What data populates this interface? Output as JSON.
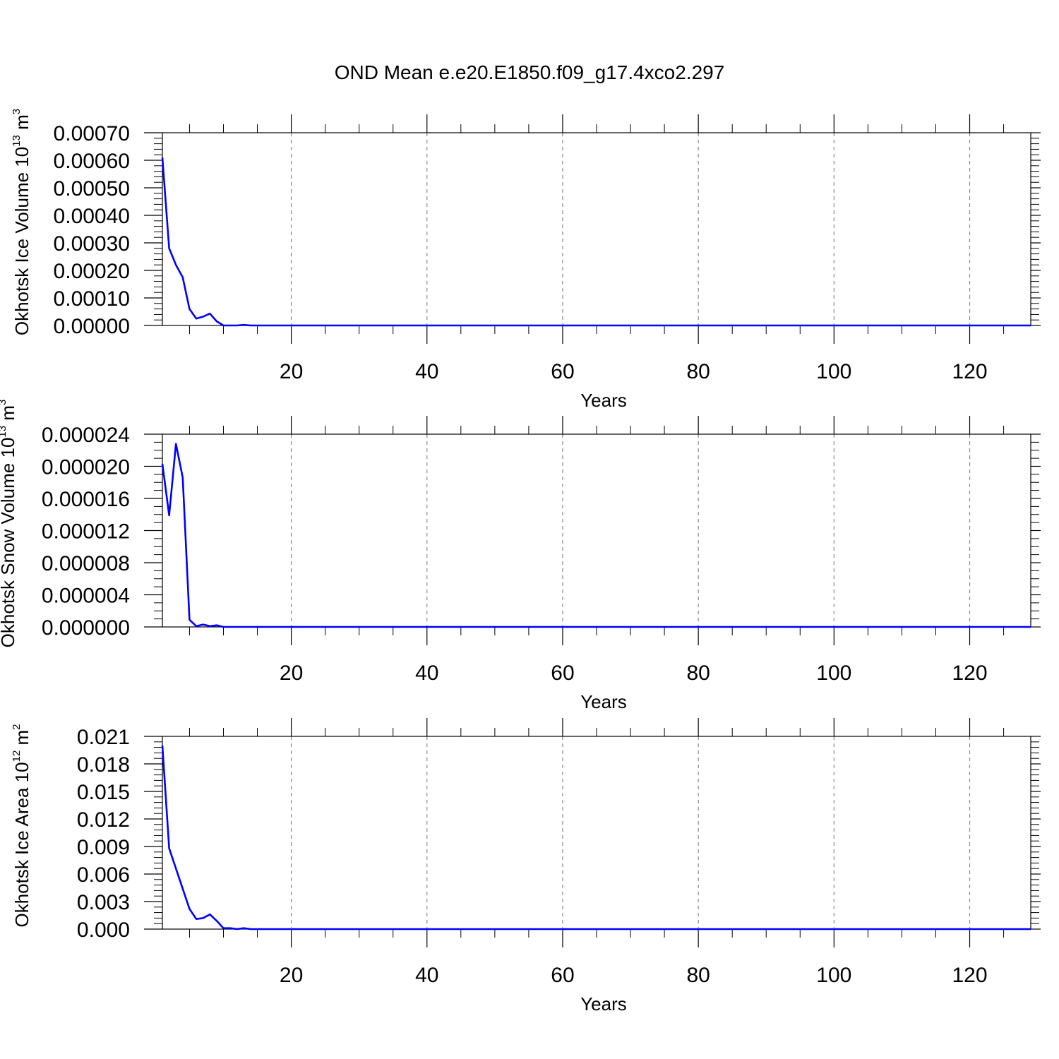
{
  "title": "OND Mean e.e20.E1850.f09_g17.4xco2.297",
  "line_color": "#0000ff",
  "chart_data": [
    {
      "type": "line",
      "ylabel": "Okhotsk Ice Volume 10",
      "ylabel_sup": "13",
      "ylabel_unit": " m",
      "ylabel_unit_sup": "3",
      "xlabel": "Years",
      "xlim": [
        1,
        129
      ],
      "ylim": [
        0,
        0.0007
      ],
      "x_ticks": [
        20,
        40,
        60,
        80,
        100,
        120
      ],
      "x_tick_labels": [
        "20",
        "40",
        "60",
        "80",
        "100",
        "120"
      ],
      "y_ticks": [
        0,
        0.0001,
        0.0002,
        0.0003,
        0.0004,
        0.0005,
        0.0006,
        0.0007
      ],
      "y_tick_labels": [
        "0.00000",
        "0.00010",
        "0.00020",
        "0.00030",
        "0.00040",
        "0.00050",
        "0.00060",
        "0.00070"
      ],
      "y_minor_step": 2e-05,
      "grid": "x-dashed",
      "series": [
        {
          "x": [
            1,
            2,
            3,
            4,
            5,
            6,
            7,
            8,
            9,
            10,
            11,
            12,
            13,
            14,
            15
          ],
          "y": [
            0.00061,
            0.00028,
            0.00022,
            0.000175,
            6e-05,
            2.5e-05,
            3.2e-05,
            4.3e-05,
            1.5e-05,
            0,
            0,
            0,
            2e-06,
            0,
            0
          ]
        }
      ],
      "tail_value": 0
    },
    {
      "type": "line",
      "ylabel": "Okhotsk Snow Volume 10",
      "ylabel_sup": "13",
      "ylabel_unit": " m",
      "ylabel_unit_sup": "3",
      "xlabel": "Years",
      "xlim": [
        1,
        129
      ],
      "ylim": [
        0,
        2.4e-05
      ],
      "x_ticks": [
        20,
        40,
        60,
        80,
        100,
        120
      ],
      "x_tick_labels": [
        "20",
        "40",
        "60",
        "80",
        "100",
        "120"
      ],
      "y_ticks": [
        0,
        4e-06,
        8e-06,
        1.2e-05,
        1.6e-05,
        2e-05,
        2.4e-05
      ],
      "y_tick_labels": [
        "0.000000",
        "0.000004",
        "0.000008",
        "0.000012",
        "0.000016",
        "0.000020",
        "0.000024"
      ],
      "y_minor_step": 1e-06,
      "grid": "x-dashed",
      "series": [
        {
          "x": [
            1,
            2,
            3,
            4,
            5,
            6,
            7,
            8,
            9,
            10,
            11,
            12
          ],
          "y": [
            2.03e-05,
            1.39e-05,
            2.28e-05,
            1.86e-05,
            9e-07,
            1e-07,
            3e-07,
            1e-07,
            2e-07,
            0,
            0,
            0
          ]
        }
      ],
      "tail_value": 0
    },
    {
      "type": "line",
      "ylabel": "Okhotsk Ice Area 10",
      "ylabel_sup": "12",
      "ylabel_unit": " m",
      "ylabel_unit_sup": "2",
      "xlabel": "Years",
      "xlim": [
        1,
        129
      ],
      "ylim": [
        0,
        0.021
      ],
      "x_ticks": [
        20,
        40,
        60,
        80,
        100,
        120
      ],
      "x_tick_labels": [
        "20",
        "40",
        "60",
        "80",
        "100",
        "120"
      ],
      "y_ticks": [
        0,
        0.003,
        0.006,
        0.009,
        0.012,
        0.015,
        0.018,
        0.021
      ],
      "y_tick_labels": [
        "0.000",
        "0.003",
        "0.006",
        "0.009",
        "0.012",
        "0.015",
        "0.018",
        "0.021"
      ],
      "y_minor_step": 0.0006,
      "grid": "x-dashed",
      "series": [
        {
          "x": [
            1,
            2,
            3,
            4,
            5,
            6,
            7,
            8,
            9,
            10,
            11,
            12,
            13,
            14,
            15
          ],
          "y": [
            0.02,
            0.0088,
            0.0066,
            0.0044,
            0.0022,
            0.0011,
            0.0012,
            0.0016,
            0.0009,
            0.0001,
            0.0001,
            0,
            0.0001,
            0,
            0
          ]
        }
      ],
      "tail_value": 0
    }
  ]
}
